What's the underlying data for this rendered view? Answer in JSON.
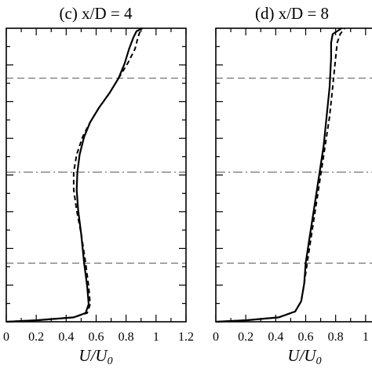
{
  "chart_data": [
    {
      "type": "line",
      "title": "(c) x/D = 4",
      "xlabel": "U/U",
      "xlabel_sub": "0",
      "xlim": [
        0,
        1.2
      ],
      "xticks": [
        "0",
        "0.2",
        "0.4",
        "0.6",
        "0.8",
        "1",
        "1.2"
      ],
      "y_tick_labels_shown": false,
      "reference_lines": [
        {
          "style": "dashed",
          "y": 0.83
        },
        {
          "style": "dashdot",
          "y": 0.51
        },
        {
          "style": "dashed",
          "y": 0.2
        }
      ],
      "series": [
        {
          "style": "solid",
          "points": [
            [
              0.0,
              0.0
            ],
            [
              0.2,
              0.005
            ],
            [
              0.45,
              0.015
            ],
            [
              0.53,
              0.03
            ],
            [
              0.55,
              0.06
            ],
            [
              0.54,
              0.12
            ],
            [
              0.52,
              0.2
            ],
            [
              0.5,
              0.3
            ],
            [
              0.48,
              0.38
            ],
            [
              0.47,
              0.45
            ],
            [
              0.475,
              0.51
            ],
            [
              0.49,
              0.57
            ],
            [
              0.52,
              0.63
            ],
            [
              0.56,
              0.68
            ],
            [
              0.62,
              0.73
            ],
            [
              0.69,
              0.78
            ],
            [
              0.75,
              0.83
            ],
            [
              0.79,
              0.88
            ],
            [
              0.82,
              0.93
            ],
            [
              0.85,
              0.97
            ],
            [
              0.87,
              0.99
            ],
            [
              0.91,
              1.0
            ]
          ]
        },
        {
          "style": "dashed",
          "points": [
            [
              0.0,
              0.0
            ],
            [
              0.2,
              0.005
            ],
            [
              0.45,
              0.015
            ],
            [
              0.54,
              0.03
            ],
            [
              0.56,
              0.06
            ],
            [
              0.55,
              0.12
            ],
            [
              0.53,
              0.2
            ],
            [
              0.5,
              0.3
            ],
            [
              0.47,
              0.38
            ],
            [
              0.45,
              0.45
            ],
            [
              0.45,
              0.51
            ],
            [
              0.47,
              0.57
            ],
            [
              0.51,
              0.63
            ],
            [
              0.56,
              0.68
            ],
            [
              0.62,
              0.73
            ],
            [
              0.69,
              0.78
            ],
            [
              0.75,
              0.83
            ],
            [
              0.81,
              0.88
            ],
            [
              0.86,
              0.93
            ],
            [
              0.88,
              0.97
            ],
            [
              0.9,
              1.0
            ]
          ]
        }
      ]
    },
    {
      "type": "line",
      "title": "(d) x/D = 8",
      "xlabel": "U/U",
      "xlabel_sub": "0",
      "xlim": [
        0,
        1.2
      ],
      "xticks": [
        "0",
        "0.2",
        "0.4",
        "0.6",
        "0.8",
        "1"
      ],
      "y_tick_labels_shown": false,
      "reference_lines": [
        {
          "style": "dashed",
          "y": 0.83
        },
        {
          "style": "dashdot",
          "y": 0.51
        },
        {
          "style": "dashed",
          "y": 0.2
        }
      ],
      "series": [
        {
          "style": "solid",
          "points": [
            [
              0.0,
              0.0
            ],
            [
              0.2,
              0.005
            ],
            [
              0.42,
              0.015
            ],
            [
              0.53,
              0.035
            ],
            [
              0.57,
              0.07
            ],
            [
              0.59,
              0.13
            ],
            [
              0.6,
              0.2
            ],
            [
              0.63,
              0.3
            ],
            [
              0.66,
              0.4
            ],
            [
              0.69,
              0.5
            ],
            [
              0.72,
              0.6
            ],
            [
              0.74,
              0.7
            ],
            [
              0.76,
              0.8
            ],
            [
              0.77,
              0.9
            ],
            [
              0.77,
              0.95
            ],
            [
              0.78,
              0.98
            ],
            [
              0.84,
              1.0
            ]
          ]
        },
        {
          "style": "dashed",
          "points": [
            [
              0.0,
              0.0
            ],
            [
              0.2,
              0.005
            ],
            [
              0.42,
              0.015
            ],
            [
              0.53,
              0.035
            ],
            [
              0.57,
              0.07
            ],
            [
              0.59,
              0.13
            ],
            [
              0.61,
              0.2
            ],
            [
              0.64,
              0.3
            ],
            [
              0.67,
              0.4
            ],
            [
              0.7,
              0.5
            ],
            [
              0.73,
              0.6
            ],
            [
              0.76,
              0.7
            ],
            [
              0.78,
              0.8
            ],
            [
              0.8,
              0.9
            ],
            [
              0.81,
              0.95
            ],
            [
              0.83,
              0.98
            ],
            [
              0.86,
              1.0
            ]
          ]
        }
      ]
    }
  ]
}
